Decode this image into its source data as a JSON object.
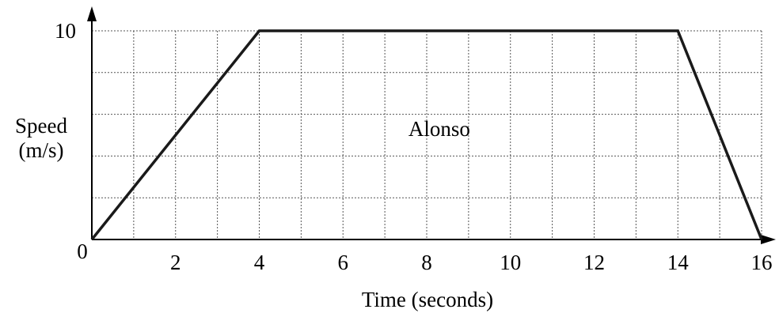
{
  "chart_data": {
    "type": "line",
    "title": "",
    "xlabel": "Time (seconds)",
    "ylabel": [
      "Speed",
      "(m/s)"
    ],
    "xlim": [
      0,
      16
    ],
    "ylim": [
      0,
      10
    ],
    "x_ticks": [
      0,
      2,
      4,
      6,
      8,
      10,
      12,
      14,
      16
    ],
    "y_ticks": [
      0,
      10
    ],
    "x_grid_step": 1,
    "y_grid_step": 2,
    "grid": true,
    "series": [
      {
        "name": "Alonso",
        "x": [
          0,
          4,
          14,
          16
        ],
        "y": [
          0,
          10,
          10,
          0
        ]
      }
    ],
    "annotations": [
      {
        "text": "Alonso",
        "x": 8.3,
        "y": 5.3
      }
    ]
  }
}
